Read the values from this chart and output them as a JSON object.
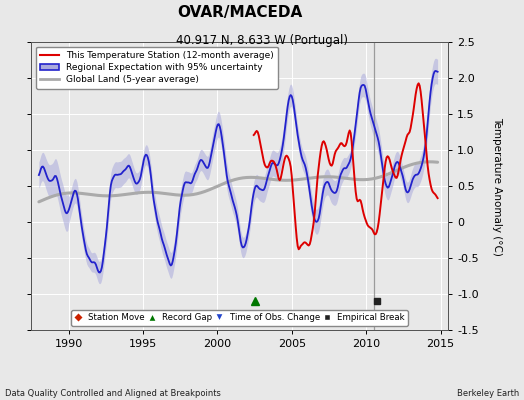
{
  "title": "OVAR/MACEDA",
  "subtitle": "40.917 N, 8.633 W (Portugal)",
  "ylabel": "Temperature Anomaly (°C)",
  "xlabel_left": "Data Quality Controlled and Aligned at Breakpoints",
  "xlabel_right": "Berkeley Earth",
  "xlim": [
    1987.5,
    2015.5
  ],
  "ylim": [
    -1.5,
    2.5
  ],
  "yticks": [
    -1.5,
    -1.0,
    -0.5,
    0.0,
    0.5,
    1.0,
    1.5,
    2.0,
    2.5
  ],
  "xticks": [
    1990,
    1995,
    2000,
    2005,
    2010,
    2015
  ],
  "background_color": "#e8e8e8",
  "plot_bg_color": "#e8e8e8",
  "grid_color": "#cccccc",
  "vertical_line_x": 2010.5,
  "record_gap_x": 2002.5,
  "record_gap_y": -1.1,
  "empirical_break_x": 2010.75,
  "empirical_break_y": -1.1,
  "red_line_color": "#dd0000",
  "blue_line_color": "#2222cc",
  "blue_fill_color": "#aaaadd",
  "gray_line_color": "#aaaaaa",
  "legend_labels": [
    "This Temperature Station (12-month average)",
    "Regional Expectation with 95% uncertainty",
    "Global Land (5-year average)"
  ]
}
